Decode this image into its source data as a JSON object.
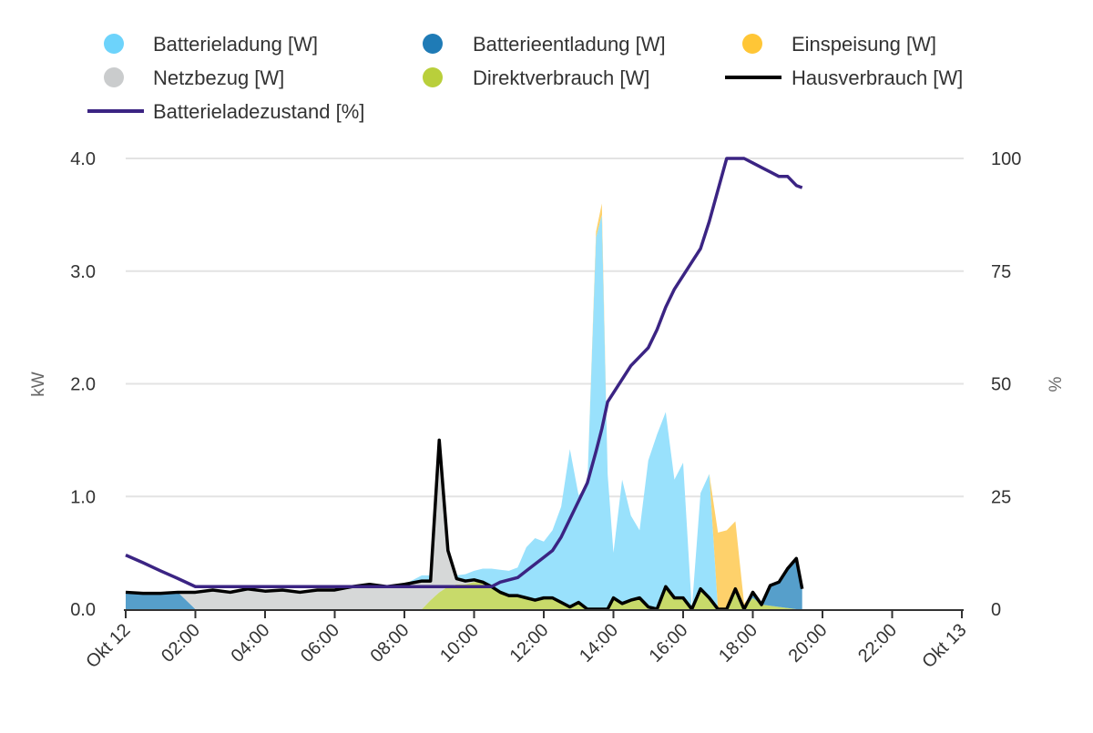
{
  "chart_data": {
    "type": "area",
    "title": "",
    "xlabel": "",
    "ylabel": "kW",
    "y2label": "%",
    "ylim": [
      0,
      4.0
    ],
    "y2lim": [
      0,
      100
    ],
    "yticks": [
      "0.0",
      "1.0",
      "2.0",
      "3.0",
      "4.0"
    ],
    "y2ticks": [
      "0",
      "25",
      "50",
      "75",
      "100"
    ],
    "xticks": [
      "Okt 12",
      "02:00",
      "04:00",
      "06:00",
      "08:00",
      "10:00",
      "12:00",
      "14:00",
      "16:00",
      "18:00",
      "20:00",
      "22:00",
      "Okt 13"
    ],
    "xrange": [
      "Okt 12 00:00",
      "Okt 13 00:00"
    ],
    "grid": true,
    "legend_position": "top",
    "stacked": true,
    "x": [
      "00:00",
      "00:30",
      "01:00",
      "01:30",
      "02:00",
      "02:30",
      "03:00",
      "03:30",
      "04:00",
      "04:30",
      "05:00",
      "05:30",
      "06:00",
      "06:30",
      "07:00",
      "07:30",
      "08:00",
      "08:30",
      "08:45",
      "09:00",
      "09:15",
      "09:30",
      "09:45",
      "10:00",
      "10:15",
      "10:30",
      "10:45",
      "11:00",
      "11:15",
      "11:30",
      "11:45",
      "12:00",
      "12:15",
      "12:30",
      "12:45",
      "13:00",
      "13:15",
      "13:30",
      "13:40",
      "13:50",
      "14:00",
      "14:15",
      "14:30",
      "14:45",
      "15:00",
      "15:15",
      "15:30",
      "15:45",
      "16:00",
      "16:15",
      "16:30",
      "16:45",
      "17:00",
      "17:15",
      "17:30",
      "17:45",
      "18:00",
      "18:15",
      "18:30",
      "18:45",
      "19:00",
      "19:15",
      "19:25"
    ],
    "series": [
      {
        "name": "Direktverbrauch [W]",
        "kind": "area",
        "axis": "left",
        "color": "#b9cf3b",
        "fill": "#c8da6a",
        "values": [
          0,
          0,
          0,
          0,
          0,
          0,
          0,
          0,
          0,
          0,
          0,
          0,
          0,
          0,
          0,
          0,
          0,
          0,
          0.08,
          0.15,
          0.2,
          0.22,
          0.22,
          0.24,
          0.24,
          0.2,
          0.15,
          0.12,
          0.12,
          0.1,
          0.08,
          0.1,
          0.1,
          0.06,
          0.02,
          0.06,
          0,
          0,
          0,
          0,
          0.1,
          0.05,
          0.08,
          0.1,
          0.02,
          0,
          0.2,
          0.1,
          0.1,
          0,
          0.18,
          0.1,
          0,
          0,
          0.18,
          0,
          0.1,
          0.04,
          0.03,
          0.02,
          0.01,
          0,
          0
        ]
      },
      {
        "name": "Batterieentladung [W]",
        "kind": "area",
        "axis": "left",
        "color": "#1f7bb6",
        "fill": "#569fcb",
        "values": [
          0.15,
          0.14,
          0.14,
          0.15,
          0,
          0,
          0,
          0,
          0,
          0,
          0,
          0,
          0,
          0,
          0,
          0,
          0,
          0,
          0,
          0,
          0,
          0,
          0,
          0,
          0,
          0,
          0,
          0,
          0,
          0,
          0,
          0,
          0,
          0,
          0,
          0,
          0,
          0,
          0,
          0,
          0,
          0,
          0,
          0,
          0,
          0,
          0,
          0,
          0,
          0,
          0,
          0,
          0,
          0,
          0,
          0,
          0.05,
          0,
          0.18,
          0.22,
          0.35,
          0.45,
          0.18
        ]
      },
      {
        "name": "Netzbezug [W]",
        "kind": "area",
        "axis": "left",
        "color": "#c9cbcc",
        "fill": "#d6d8d8",
        "values": [
          0,
          0,
          0,
          0,
          0.15,
          0.17,
          0.15,
          0.18,
          0.16,
          0.17,
          0.15,
          0.17,
          0.17,
          0.2,
          0.22,
          0.2,
          0.22,
          0.25,
          0.17,
          1.35,
          0.32,
          0.05,
          0.03,
          0.02,
          0,
          0,
          0,
          0,
          0,
          0,
          0,
          0,
          0,
          0,
          0,
          0,
          0,
          0,
          0,
          0,
          0,
          0,
          0,
          0,
          0,
          0,
          0,
          0,
          0,
          0,
          0,
          0,
          0,
          0,
          0,
          0,
          0,
          0,
          0,
          0,
          0,
          0,
          0
        ]
      },
      {
        "name": "Batterieladung [W]",
        "kind": "area",
        "axis": "left",
        "color": "#6dd3fb",
        "fill": "#99e1fc",
        "values": [
          0,
          0,
          0,
          0,
          0,
          0,
          0,
          0,
          0,
          0,
          0,
          0,
          0,
          0,
          0,
          0,
          0,
          0.05,
          0.05,
          0.02,
          0,
          0.03,
          0.06,
          0.08,
          0.12,
          0.16,
          0.2,
          0.22,
          0.25,
          0.45,
          0.55,
          0.5,
          0.6,
          0.85,
          1.4,
          0.95,
          1.1,
          3.3,
          3.5,
          1.2,
          0.4,
          1.1,
          0.75,
          0.6,
          1.3,
          1.55,
          1.55,
          1.05,
          1.2,
          0,
          0.85,
          1.1,
          0,
          0,
          0,
          0,
          0,
          0,
          0,
          0,
          0,
          0,
          0
        ]
      },
      {
        "name": "Einspeisung [W]",
        "kind": "area",
        "axis": "left",
        "color": "#ffc636",
        "fill": "#fed16b",
        "values": [
          0,
          0,
          0,
          0,
          0,
          0,
          0,
          0,
          0,
          0,
          0,
          0,
          0,
          0,
          0,
          0,
          0,
          0,
          0,
          0,
          0,
          0,
          0,
          0,
          0,
          0,
          0,
          0,
          0,
          0,
          0,
          0,
          0,
          0,
          0,
          0,
          0,
          0.05,
          0.1,
          0,
          0,
          0,
          0,
          0,
          0,
          0,
          0,
          0,
          0,
          0,
          0,
          0,
          0.68,
          0.7,
          0.6,
          0.05,
          0,
          0,
          0,
          0,
          0,
          0,
          0
        ]
      },
      {
        "name": "Hausverbrauch [W]",
        "kind": "line",
        "axis": "left",
        "color": "#000000",
        "values": [
          0.15,
          0.14,
          0.14,
          0.15,
          0.15,
          0.17,
          0.15,
          0.18,
          0.16,
          0.17,
          0.15,
          0.17,
          0.17,
          0.2,
          0.22,
          0.2,
          0.22,
          0.25,
          0.25,
          1.5,
          0.52,
          0.27,
          0.25,
          0.26,
          0.24,
          0.2,
          0.15,
          0.12,
          0.12,
          0.1,
          0.08,
          0.1,
          0.1,
          0.06,
          0.02,
          0.06,
          0,
          0,
          0,
          0,
          0.1,
          0.05,
          0.08,
          0.1,
          0.02,
          0,
          0.2,
          0.1,
          0.1,
          0,
          0.18,
          0.1,
          0,
          0,
          0.18,
          0,
          0.15,
          0.04,
          0.21,
          0.24,
          0.36,
          0.45,
          0.18
        ]
      },
      {
        "name": "Batterieladezustand [%]",
        "kind": "line",
        "axis": "right",
        "color": "#3b2483",
        "values": [
          12,
          10.3,
          8.5,
          6.8,
          5,
          5,
          5,
          5,
          5,
          5,
          5,
          5,
          5,
          5,
          5,
          5,
          5,
          5,
          5,
          5,
          5,
          5,
          5,
          5,
          5,
          5,
          6,
          6.5,
          7,
          8.5,
          10,
          11.5,
          13,
          16,
          20,
          24,
          28,
          35,
          40,
          46,
          48,
          51,
          54,
          56,
          58,
          62,
          67,
          71,
          74,
          77,
          80,
          86,
          93,
          100,
          100,
          100,
          99,
          98,
          97,
          96,
          96,
          94,
          93.5
        ]
      }
    ],
    "legend": [
      {
        "label": "Batterieladung [W]",
        "marker": "dot",
        "color": "#6dd3fb"
      },
      {
        "label": "Batterieentladung [W]",
        "marker": "dot",
        "color": "#1f7bb6"
      },
      {
        "label": "Einspeisung [W]",
        "marker": "dot",
        "color": "#ffc636"
      },
      {
        "label": "Netzbezug [W]",
        "marker": "dot",
        "color": "#cacccd"
      },
      {
        "label": "Direktverbrauch [W]",
        "marker": "dot",
        "color": "#b9cf3b"
      },
      {
        "label": "Hausverbrauch [W]",
        "marker": "line",
        "color": "#000000"
      },
      {
        "label": "Batterieladezustand [%]",
        "marker": "line",
        "color": "#3b2483"
      }
    ]
  }
}
